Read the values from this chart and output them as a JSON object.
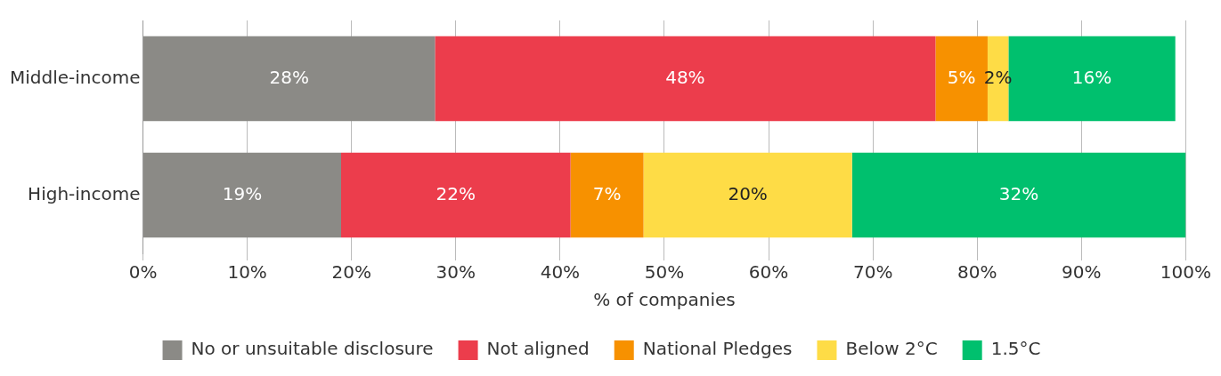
{
  "chart_data": {
    "type": "bar",
    "orientation": "horizontal",
    "stacked": true,
    "xlabel": "% of companies",
    "categories": [
      "Middle-income",
      "High-income"
    ],
    "series": [
      {
        "name": "No or unsuitable disclosure",
        "color": "#8b8a86",
        "values": [
          28,
          19
        ],
        "value_labels": [
          "28%",
          "19%"
        ]
      },
      {
        "name": "Not aligned",
        "color": "#ec3d4c",
        "values": [
          48,
          22
        ],
        "value_labels": [
          "48%",
          "22%"
        ]
      },
      {
        "name": "National Pledges",
        "color": "#f79100",
        "values": [
          5,
          7
        ],
        "value_labels": [
          "5%",
          "7%"
        ]
      },
      {
        "name": "Below 2°C",
        "color": "#fedc46",
        "values": [
          2,
          20
        ],
        "value_labels": [
          "2%",
          "20%"
        ]
      },
      {
        "name": "1.5°C",
        "color": "#00c06e",
        "values": [
          16,
          32
        ],
        "value_labels": [
          "16%",
          "32%"
        ]
      }
    ],
    "xlim": [
      0,
      100
    ],
    "xticks": [
      {
        "value": 0,
        "label": "0%"
      },
      {
        "value": 10,
        "label": "10%"
      },
      {
        "value": 20,
        "label": "20%"
      },
      {
        "value": 30,
        "label": "30%"
      },
      {
        "value": 40,
        "label": "40%"
      },
      {
        "value": 50,
        "label": "50%"
      },
      {
        "value": 60,
        "label": "60%"
      },
      {
        "value": 70,
        "label": "70%"
      },
      {
        "value": 80,
        "label": "80%"
      },
      {
        "value": 90,
        "label": "90%"
      },
      {
        "value": 100,
        "label": "100%"
      }
    ],
    "grid": "x",
    "legend": "bottom"
  }
}
